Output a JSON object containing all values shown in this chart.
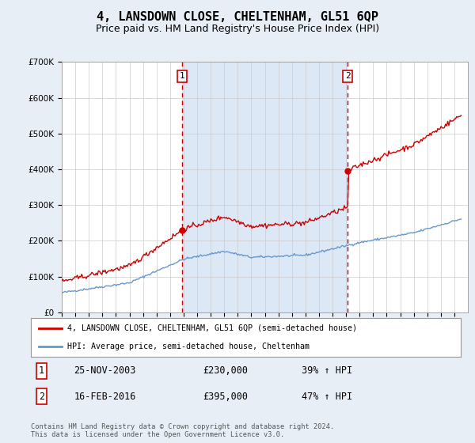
{
  "title": "4, LANSDOWN CLOSE, CHELTENHAM, GL51 6QP",
  "subtitle": "Price paid vs. HM Land Registry's House Price Index (HPI)",
  "title_fontsize": 11,
  "subtitle_fontsize": 9,
  "background_color": "#e8eef5",
  "plot_bg_color": "#ffffff",
  "shade_color": "#dce8f5",
  "grid_color": "#cccccc",
  "sale1_date": 2003.9,
  "sale1_price": 230000,
  "sale1_display": "25-NOV-2003",
  "sale1_pct": "39%",
  "sale2_date": 2016.12,
  "sale2_price": 395000,
  "sale2_display": "16-FEB-2016",
  "sale2_pct": "47%",
  "red_color": "#cc0000",
  "blue_color": "#6699cc",
  "legend_label_red": "4, LANSDOWN CLOSE, CHELTENHAM, GL51 6QP (semi-detached house)",
  "legend_label_blue": "HPI: Average price, semi-detached house, Cheltenham",
  "footnote": "Contains HM Land Registry data © Crown copyright and database right 2024.\nThis data is licensed under the Open Government Licence v3.0.",
  "ylim": [
    0,
    700000
  ],
  "xlim_start": 1995,
  "xlim_end": 2025
}
